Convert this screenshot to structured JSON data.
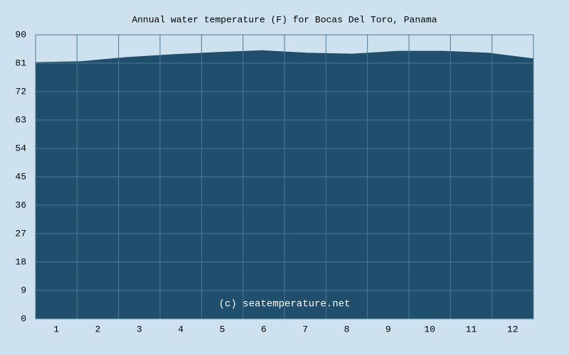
{
  "chart_data": {
    "type": "area",
    "title": "Annual water temperature (F) for Bocas Del Toro, Panama",
    "annotation": "(c) seatemperature.net",
    "categories": [
      "1",
      "2",
      "3",
      "4",
      "5",
      "6",
      "7",
      "8",
      "9",
      "10",
      "11",
      "12"
    ],
    "values": [
      81.2,
      81.5,
      82.8,
      83.7,
      84.4,
      85.0,
      84.2,
      83.9,
      84.8,
      84.8,
      84.2,
      82.4
    ],
    "color": "#1f4f6c",
    "ylim": [
      0,
      90
    ],
    "yticks": [
      0,
      9,
      18,
      27,
      36,
      45,
      54,
      63,
      72,
      81,
      90
    ],
    "grid": true
  }
}
